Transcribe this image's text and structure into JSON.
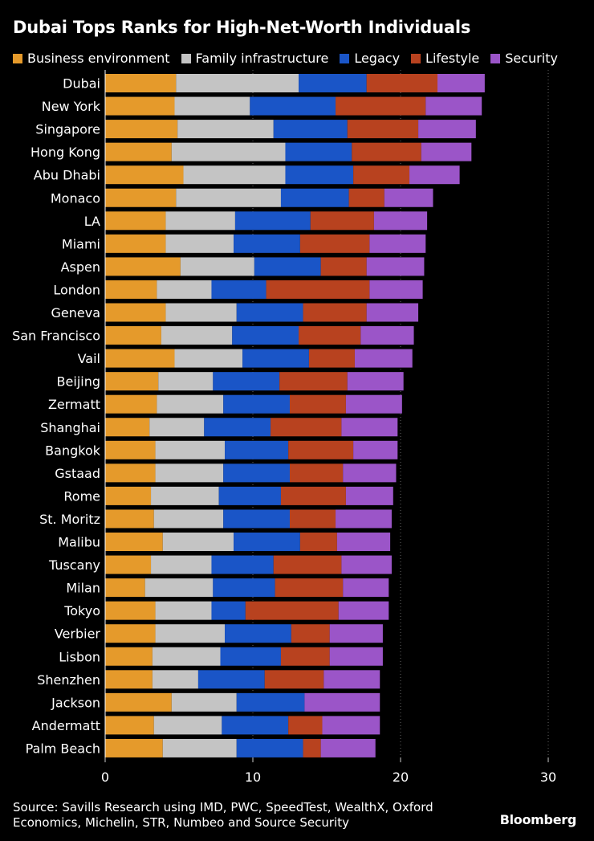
{
  "chart_data": {
    "type": "bar",
    "orientation": "horizontal",
    "stacked": true,
    "title": "Dubai Tops Ranks for High-Net-Worth Individuals",
    "categories": [
      "Dubai",
      "New York",
      "Singapore",
      "Hong Kong",
      "Abu Dhabi",
      "Monaco",
      "LA",
      "Miami",
      "Aspen",
      "London",
      "Geneva",
      "San Francisco",
      "Vail",
      "Beijing",
      "Zermatt",
      "Shanghai",
      "Bangkok",
      "Gstaad",
      "Rome",
      "St. Moritz",
      "Malibu",
      "Tuscany",
      "Milan",
      "Tokyo",
      "Verbier",
      "Lisbon",
      "Shenzhen",
      "Jackson",
      "Andermatt",
      "Palm Beach"
    ],
    "series": [
      {
        "name": "Business environment",
        "color": "#e59a2b",
        "values": [
          4.8,
          4.7,
          4.9,
          4.5,
          5.3,
          4.8,
          4.1,
          4.1,
          5.1,
          3.5,
          4.1,
          3.8,
          4.7,
          3.6,
          3.5,
          3.0,
          3.4,
          3.4,
          3.1,
          3.3,
          3.9,
          3.1,
          2.7,
          3.4,
          3.4,
          3.2,
          3.2,
          4.5,
          3.3,
          3.9
        ]
      },
      {
        "name": "Family infrastructure",
        "color": "#c4c4c4",
        "values": [
          8.3,
          5.1,
          6.5,
          7.7,
          6.9,
          7.1,
          4.7,
          4.6,
          5.0,
          3.7,
          4.8,
          4.8,
          4.6,
          3.7,
          4.5,
          3.7,
          4.7,
          4.6,
          4.6,
          4.7,
          4.8,
          4.1,
          4.6,
          3.8,
          4.7,
          4.6,
          3.1,
          4.4,
          4.6,
          5.0
        ]
      },
      {
        "name": "Legacy",
        "color": "#1a55c7",
        "values": [
          4.6,
          5.8,
          5.0,
          4.5,
          4.6,
          4.6,
          5.1,
          4.5,
          4.5,
          3.7,
          4.5,
          4.5,
          4.5,
          4.5,
          4.5,
          4.5,
          4.3,
          4.5,
          4.2,
          4.5,
          4.5,
          4.2,
          4.2,
          2.3,
          4.5,
          4.1,
          4.5,
          4.6,
          4.5,
          4.5
        ]
      },
      {
        "name": "Lifestyle",
        "color": "#b8421f",
        "values": [
          4.8,
          6.1,
          4.8,
          4.7,
          3.8,
          2.4,
          4.3,
          4.7,
          3.1,
          7.0,
          4.3,
          4.2,
          3.1,
          4.6,
          3.8,
          4.8,
          4.4,
          3.6,
          4.4,
          3.1,
          2.5,
          4.6,
          4.6,
          6.3,
          2.6,
          3.3,
          4.0,
          0,
          2.3,
          1.2
        ]
      },
      {
        "name": "Security",
        "color": "#9b55c8",
        "values": [
          3.2,
          3.8,
          3.9,
          3.4,
          3.4,
          3.3,
          3.6,
          3.8,
          3.9,
          3.6,
          3.5,
          3.6,
          3.9,
          3.8,
          3.8,
          3.8,
          3.0,
          3.6,
          3.2,
          3.8,
          3.6,
          3.4,
          3.1,
          3.4,
          3.6,
          3.6,
          3.8,
          5.1,
          3.9,
          3.7
        ]
      }
    ],
    "xlim": [
      0,
      30
    ],
    "xticks": [
      "0",
      "10",
      "20",
      "30"
    ],
    "legend": "top",
    "grid": true
  },
  "source": "Source: Savills Research using IMD, PWC, SpeedTest, WealthX, Oxford Economics, Michelin, STR, Numbeo and Source Security",
  "brand": "Bloomberg"
}
